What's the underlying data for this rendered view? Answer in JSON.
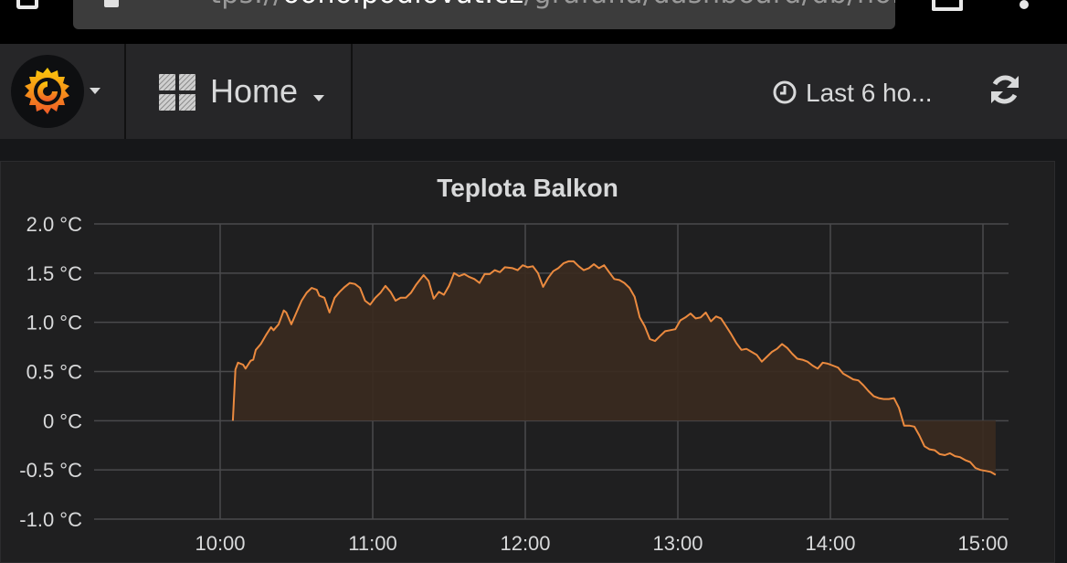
{
  "browser": {
    "url_prefix": "tps://",
    "url_host": "ooho.podlovat.cz",
    "url_path": "/grafana/dashboard/db/home?pa"
  },
  "navbar": {
    "logo": "grafana-logo",
    "dashboard_title": "Home",
    "time_range": "Last 6 ho...",
    "icons": [
      "grafana-logo",
      "dashboard-grid-icon",
      "clock-icon",
      "refresh-icon"
    ]
  },
  "panel": {
    "title": "Teplota Balkon",
    "line_color": "#eb8a3f",
    "fill_color": "#3a2a1f"
  },
  "chart_data": {
    "type": "area",
    "title": "Teplota Balkon",
    "ylim": [
      -1.0,
      2.0
    ],
    "y_ticks": [
      "2.0 °C",
      "1.5 °C",
      "1.0 °C",
      "0.5 °C",
      "0 °C",
      "-0.5 °C",
      "-1.0 °C"
    ],
    "y_tick_values": [
      2.0,
      1.5,
      1.0,
      0.5,
      0,
      -0.5,
      -1.0
    ],
    "x_ticks": [
      "10:00",
      "11:00",
      "12:00",
      "13:00",
      "14:00",
      "15:00"
    ],
    "grid": true,
    "series": [
      {
        "points": [
          [
            "10:05",
            0.0
          ],
          [
            "10:06",
            0.52
          ],
          [
            "10:07",
            0.59
          ],
          [
            "10:09",
            0.57
          ],
          [
            "10:10",
            0.53
          ],
          [
            "10:12",
            0.61
          ],
          [
            "10:13",
            0.62
          ],
          [
            "10:14",
            0.72
          ],
          [
            "10:16",
            0.78
          ],
          [
            "10:18",
            0.87
          ],
          [
            "10:20",
            0.95
          ],
          [
            "10:21",
            0.92
          ],
          [
            "10:23",
            0.98
          ],
          [
            "10:25",
            1.12
          ],
          [
            "10:26",
            1.1
          ],
          [
            "10:28",
            0.98
          ],
          [
            "10:30",
            1.1
          ],
          [
            "10:32",
            1.22
          ],
          [
            "10:34",
            1.3
          ],
          [
            "10:36",
            1.35
          ],
          [
            "10:38",
            1.33
          ],
          [
            "10:39",
            1.27
          ],
          [
            "10:41",
            1.25
          ],
          [
            "10:43",
            1.1
          ],
          [
            "10:45",
            1.25
          ],
          [
            "10:47",
            1.31
          ],
          [
            "10:49",
            1.36
          ],
          [
            "10:51",
            1.4
          ],
          [
            "10:53",
            1.39
          ],
          [
            "10:55",
            1.35
          ],
          [
            "10:57",
            1.22
          ],
          [
            "10:59",
            1.18
          ],
          [
            "11:01",
            1.25
          ],
          [
            "11:03",
            1.3
          ],
          [
            "11:05",
            1.37
          ],
          [
            "11:07",
            1.31
          ],
          [
            "11:09",
            1.22
          ],
          [
            "11:11",
            1.25
          ],
          [
            "11:13",
            1.25
          ],
          [
            "11:15",
            1.3
          ],
          [
            "11:17",
            1.38
          ],
          [
            "11:20",
            1.48
          ],
          [
            "11:22",
            1.42
          ],
          [
            "11:24",
            1.24
          ],
          [
            "11:26",
            1.31
          ],
          [
            "11:28",
            1.28
          ],
          [
            "11:30",
            1.37
          ],
          [
            "11:32",
            1.5
          ],
          [
            "11:34",
            1.47
          ],
          [
            "11:36",
            1.49
          ],
          [
            "11:38",
            1.46
          ],
          [
            "11:40",
            1.44
          ],
          [
            "11:42",
            1.4
          ],
          [
            "11:44",
            1.49
          ],
          [
            "11:46",
            1.49
          ],
          [
            "11:48",
            1.53
          ],
          [
            "11:50",
            1.51
          ],
          [
            "11:52",
            1.56
          ],
          [
            "11:55",
            1.55
          ],
          [
            "11:57",
            1.53
          ],
          [
            "11:59",
            1.58
          ],
          [
            "12:01",
            1.56
          ],
          [
            "12:03",
            1.57
          ],
          [
            "12:05",
            1.5
          ],
          [
            "12:07",
            1.36
          ],
          [
            "12:09",
            1.45
          ],
          [
            "12:11",
            1.52
          ],
          [
            "12:13",
            1.55
          ],
          [
            "12:15",
            1.6
          ],
          [
            "12:17",
            1.62
          ],
          [
            "12:19",
            1.62
          ],
          [
            "12:21",
            1.57
          ],
          [
            "12:23",
            1.53
          ],
          [
            "12:25",
            1.55
          ],
          [
            "12:27",
            1.59
          ],
          [
            "12:29",
            1.55
          ],
          [
            "12:31",
            1.58
          ],
          [
            "12:33",
            1.51
          ],
          [
            "12:35",
            1.44
          ],
          [
            "12:37",
            1.43
          ],
          [
            "12:39",
            1.4
          ],
          [
            "12:41",
            1.35
          ],
          [
            "12:43",
            1.26
          ],
          [
            "12:45",
            1.05
          ],
          [
            "12:47",
            0.96
          ],
          [
            "12:49",
            0.83
          ],
          [
            "12:51",
            0.81
          ],
          [
            "12:53",
            0.86
          ],
          [
            "12:55",
            0.91
          ],
          [
            "12:57",
            0.92
          ],
          [
            "12:59",
            0.93
          ],
          [
            "13:01",
            1.02
          ],
          [
            "13:03",
            1.05
          ],
          [
            "13:05",
            1.09
          ],
          [
            "13:07",
            1.04
          ],
          [
            "13:09",
            1.05
          ],
          [
            "13:11",
            1.1
          ],
          [
            "13:13",
            1.01
          ],
          [
            "13:15",
            1.06
          ],
          [
            "13:17",
            1.04
          ],
          [
            "13:19",
            0.96
          ],
          [
            "13:21",
            0.88
          ],
          [
            "13:23",
            0.79
          ],
          [
            "13:25",
            0.72
          ],
          [
            "13:27",
            0.73
          ],
          [
            "13:29",
            0.7
          ],
          [
            "13:31",
            0.67
          ],
          [
            "13:33",
            0.6
          ],
          [
            "13:35",
            0.65
          ],
          [
            "13:37",
            0.7
          ],
          [
            "13:39",
            0.73
          ],
          [
            "13:41",
            0.78
          ],
          [
            "13:43",
            0.74
          ],
          [
            "13:45",
            0.68
          ],
          [
            "13:47",
            0.63
          ],
          [
            "13:49",
            0.62
          ],
          [
            "13:51",
            0.6
          ],
          [
            "13:53",
            0.56
          ],
          [
            "13:55",
            0.53
          ],
          [
            "13:57",
            0.59
          ],
          [
            "13:59",
            0.58
          ],
          [
            "14:01",
            0.56
          ],
          [
            "14:03",
            0.54
          ],
          [
            "14:05",
            0.48
          ],
          [
            "14:07",
            0.45
          ],
          [
            "14:09",
            0.42
          ],
          [
            "14:11",
            0.41
          ],
          [
            "14:13",
            0.36
          ],
          [
            "14:15",
            0.3
          ],
          [
            "14:17",
            0.25
          ],
          [
            "14:19",
            0.23
          ],
          [
            "14:21",
            0.22
          ],
          [
            "14:23",
            0.22
          ],
          [
            "14:25",
            0.23
          ],
          [
            "14:27",
            0.13
          ],
          [
            "14:29",
            -0.05
          ],
          [
            "14:31",
            -0.05
          ],
          [
            "14:33",
            -0.06
          ],
          [
            "14:35",
            -0.15
          ],
          [
            "14:37",
            -0.26
          ],
          [
            "14:39",
            -0.29
          ],
          [
            "14:41",
            -0.3
          ],
          [
            "14:43",
            -0.34
          ],
          [
            "14:45",
            -0.35
          ],
          [
            "14:47",
            -0.33
          ],
          [
            "14:49",
            -0.36
          ],
          [
            "14:51",
            -0.37
          ],
          [
            "14:53",
            -0.4
          ],
          [
            "14:55",
            -0.42
          ],
          [
            "14:57",
            -0.48
          ],
          [
            "14:59",
            -0.5
          ],
          [
            "15:01",
            -0.51
          ],
          [
            "15:03",
            -0.52
          ],
          [
            "15:05",
            -0.55
          ]
        ]
      }
    ]
  }
}
